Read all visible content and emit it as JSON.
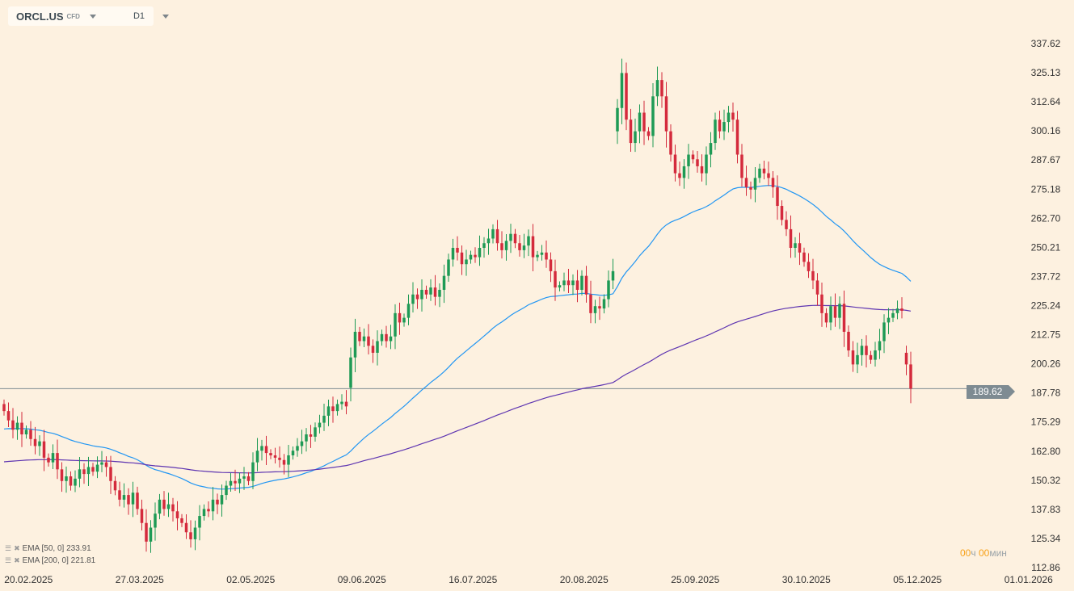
{
  "header": {
    "symbol": "ORCL.US",
    "instrument_type": "CFD",
    "timeframe": "D1"
  },
  "indicators": [
    {
      "label": "EMA [50,  0] 233.91",
      "color": "#2196f3",
      "period": 50,
      "seed": 172
    },
    {
      "label": "EMA [200,  0] 221.81",
      "color": "#5e35b1",
      "period": 200,
      "seed": 158
    }
  ],
  "timer": {
    "hours": "00",
    "hours_unit": "ч",
    "minutes": "00",
    "minutes_unit": "мин"
  },
  "current_price": "189.62",
  "colors": {
    "up": "#1e9a55",
    "down": "#d42a3c",
    "price_line": "#7e8b92"
  },
  "chart_data": {
    "type": "candlestick",
    "title": "ORCL.US D1",
    "y_ticks": [
      "337.62",
      "325.13",
      "312.64",
      "300.16",
      "287.67",
      "275.18",
      "262.70",
      "250.21",
      "237.72",
      "225.24",
      "212.75",
      "200.26",
      "187.78",
      "175.29",
      "162.80",
      "150.32",
      "137.83",
      "125.34",
      "112.86"
    ],
    "ylim": [
      112.86,
      337.62
    ],
    "x_ticks": [
      {
        "label": "20.02.2025",
        "index": 5.5
      },
      {
        "label": "27.03.2025",
        "index": 30.5
      },
      {
        "label": "02.05.2025",
        "index": 55.5
      },
      {
        "label": "09.06.2025",
        "index": 80.5
      },
      {
        "label": "16.07.2025",
        "index": 105.5
      },
      {
        "label": "20.08.2025",
        "index": 130.5
      },
      {
        "label": "25.09.2025",
        "index": 155.5
      },
      {
        "label": "30.10.2025",
        "index": 180.5
      },
      {
        "label": "05.12.2025",
        "index": 205.5
      },
      {
        "label": "01.01.2026",
        "index": 230.5
      }
    ],
    "first_open": 183,
    "gap_opens": {
      "78": 190,
      "138": 300,
      "203": 205
    },
    "close": [
      180,
      176,
      172,
      175,
      170,
      172,
      168,
      165,
      167,
      160,
      158,
      162,
      155,
      150,
      152,
      148,
      151,
      155,
      153,
      156,
      154,
      157,
      158,
      156,
      150,
      146,
      142,
      144,
      140,
      145,
      138,
      132,
      124,
      130,
      136,
      142,
      138,
      140,
      137,
      134,
      132,
      128,
      125,
      130,
      135,
      138,
      137,
      142,
      140,
      144,
      148,
      150,
      149,
      151,
      152,
      150,
      158,
      163,
      165,
      162,
      161,
      160,
      159,
      157,
      161,
      163,
      165,
      167,
      170,
      169,
      173,
      175,
      178,
      182,
      180,
      183,
      184,
      182,
      203,
      214,
      210,
      212,
      208,
      205,
      210,
      213,
      210,
      212,
      222,
      218,
      220,
      226,
      230,
      228,
      232,
      230,
      233,
      229,
      232,
      238,
      245,
      250,
      248,
      243,
      245,
      247,
      246,
      250,
      252,
      254,
      258,
      252,
      249,
      253,
      256,
      252,
      249,
      251,
      255,
      246,
      247,
      248,
      245,
      240,
      233,
      234,
      236,
      234,
      236,
      232,
      238,
      230,
      222,
      225,
      224,
      228,
      236,
      240,
      310,
      325,
      305,
      295,
      300,
      308,
      300,
      298,
      315,
      322,
      315,
      300,
      290,
      282,
      280,
      285,
      290,
      288,
      285,
      282,
      290,
      295,
      305,
      300,
      304,
      308,
      305,
      290,
      280,
      276,
      275,
      280,
      284,
      282,
      280,
      276,
      268,
      262,
      258,
      250,
      252,
      248,
      244,
      240,
      236,
      230,
      222,
      218,
      225,
      220,
      226,
      214,
      206,
      200,
      204,
      208,
      204,
      202,
      206,
      210,
      218,
      220,
      222,
      224,
      223,
      200,
      189.62
    ]
  }
}
